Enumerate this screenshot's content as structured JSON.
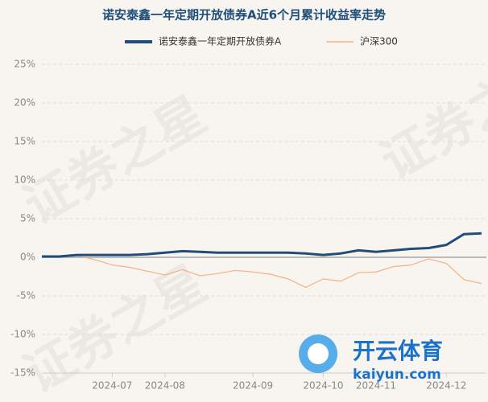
{
  "chart_data": {
    "type": "line",
    "title": "诺安泰鑫一年定期开放债券A近6个月累计收益率走势",
    "watermark": "证券之星",
    "logo_text": "开云体育",
    "logo_url": "kaiyun.com",
    "categories": [
      null,
      null,
      null,
      null,
      "2024-07",
      null,
      null,
      "2024-08",
      null,
      null,
      null,
      null,
      "2024-09",
      null,
      null,
      null,
      "2024-10",
      null,
      null,
      "2024-11",
      null,
      null,
      null,
      "2024-12",
      null,
      null
    ],
    "series": [
      {
        "name": "诺安泰鑫一年定期开放债券A",
        "color": "#1f4e79",
        "values": [
          0.1,
          0.1,
          0.3,
          0.3,
          0.3,
          0.3,
          0.4,
          0.6,
          0.8,
          0.7,
          0.6,
          0.6,
          0.6,
          0.6,
          0.6,
          0.5,
          0.3,
          0.5,
          0.9,
          0.7,
          0.9,
          1.1,
          1.2,
          1.6,
          3.0,
          3.1
        ]
      },
      {
        "name": "沪深300",
        "color": "#f4b183",
        "values": [
          0,
          0.1,
          0.2,
          -0.3,
          -1.0,
          -1.3,
          -1.8,
          -2.3,
          -1.6,
          -2.4,
          -2.1,
          -1.7,
          -1.9,
          -2.2,
          -2.8,
          -3.9,
          -2.8,
          -3.1,
          -2.0,
          -1.9,
          -1.2,
          -1.0,
          -0.2,
          -0.8,
          -2.9,
          -3.4
        ]
      }
    ],
    "ylim": [
      -15,
      25
    ],
    "yticks": [
      {
        "value": -15,
        "label": "-15%"
      },
      {
        "value": -10,
        "label": "-10%"
      },
      {
        "value": -5,
        "label": "-5%"
      },
      {
        "value": 0,
        "label": "0%"
      },
      {
        "value": 5,
        "label": "5%"
      },
      {
        "value": 10,
        "label": "10%"
      },
      {
        "value": 15,
        "label": "15%"
      },
      {
        "value": 20,
        "label": "20%"
      },
      {
        "value": 25,
        "label": "25%"
      }
    ],
    "grid": true
  }
}
